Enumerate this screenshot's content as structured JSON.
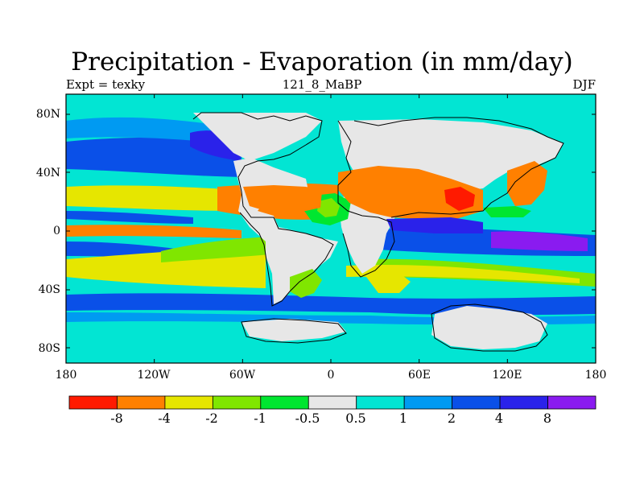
{
  "map": {
    "title": "Precipitation - Evaporation (in mm/day)",
    "subtitle_left": "Expt = texky",
    "subtitle_center": "121_8_MaBP",
    "subtitle_right": "DJF",
    "y_ticks": [
      "80N",
      "40N",
      "0",
      "40S",
      "80S"
    ],
    "x_ticks": [
      "180",
      "120W",
      "60W",
      "0",
      "60E",
      "120E",
      "180"
    ],
    "colors": {
      "ocean_background": "#02e5d3",
      "land_neutral": "#e7e7e7",
      "coastline": "#000000"
    }
  },
  "colorbar": {
    "colors": [
      "#ff1a00",
      "#ff8000",
      "#e6e600",
      "#80e600",
      "#00e630",
      "#e7e7e7",
      "#02e5d3",
      "#009af2",
      "#0a50e8",
      "#2a22ea",
      "#8a1bf0"
    ],
    "labels": [
      "-8",
      "-4",
      "-2",
      "-1",
      "-0.5",
      "0.5",
      "1",
      "2",
      "4",
      "8"
    ]
  }
}
